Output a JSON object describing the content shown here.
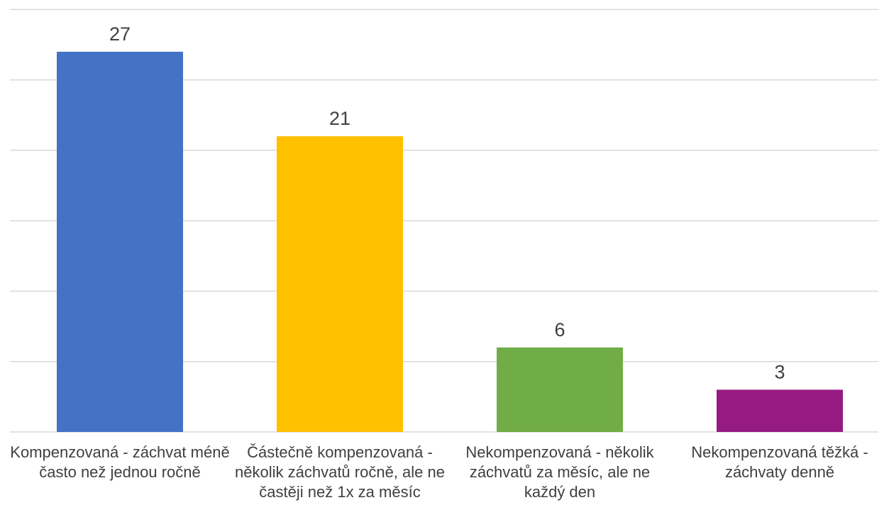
{
  "chart_data": {
    "type": "bar",
    "categories": [
      "Kompenzovaná - záchvat méně často než jednou ročně",
      "Částečně kompenzovaná - několik záchvatů ročně, ale ne častěji než 1x za měsíc",
      "Nekompenzovaná - několik záchvatů za měsíc, ale ne každý den",
      "Nekompenzovaná těžká - záchvaty denně"
    ],
    "values": [
      27,
      21,
      6,
      3
    ],
    "colors": [
      "#4472c4",
      "#ffc000",
      "#70ad47",
      "#951a81"
    ],
    "ylim": [
      0,
      30
    ],
    "yticks": [
      0,
      5,
      10,
      15,
      20,
      25,
      30
    ],
    "grid": true
  }
}
